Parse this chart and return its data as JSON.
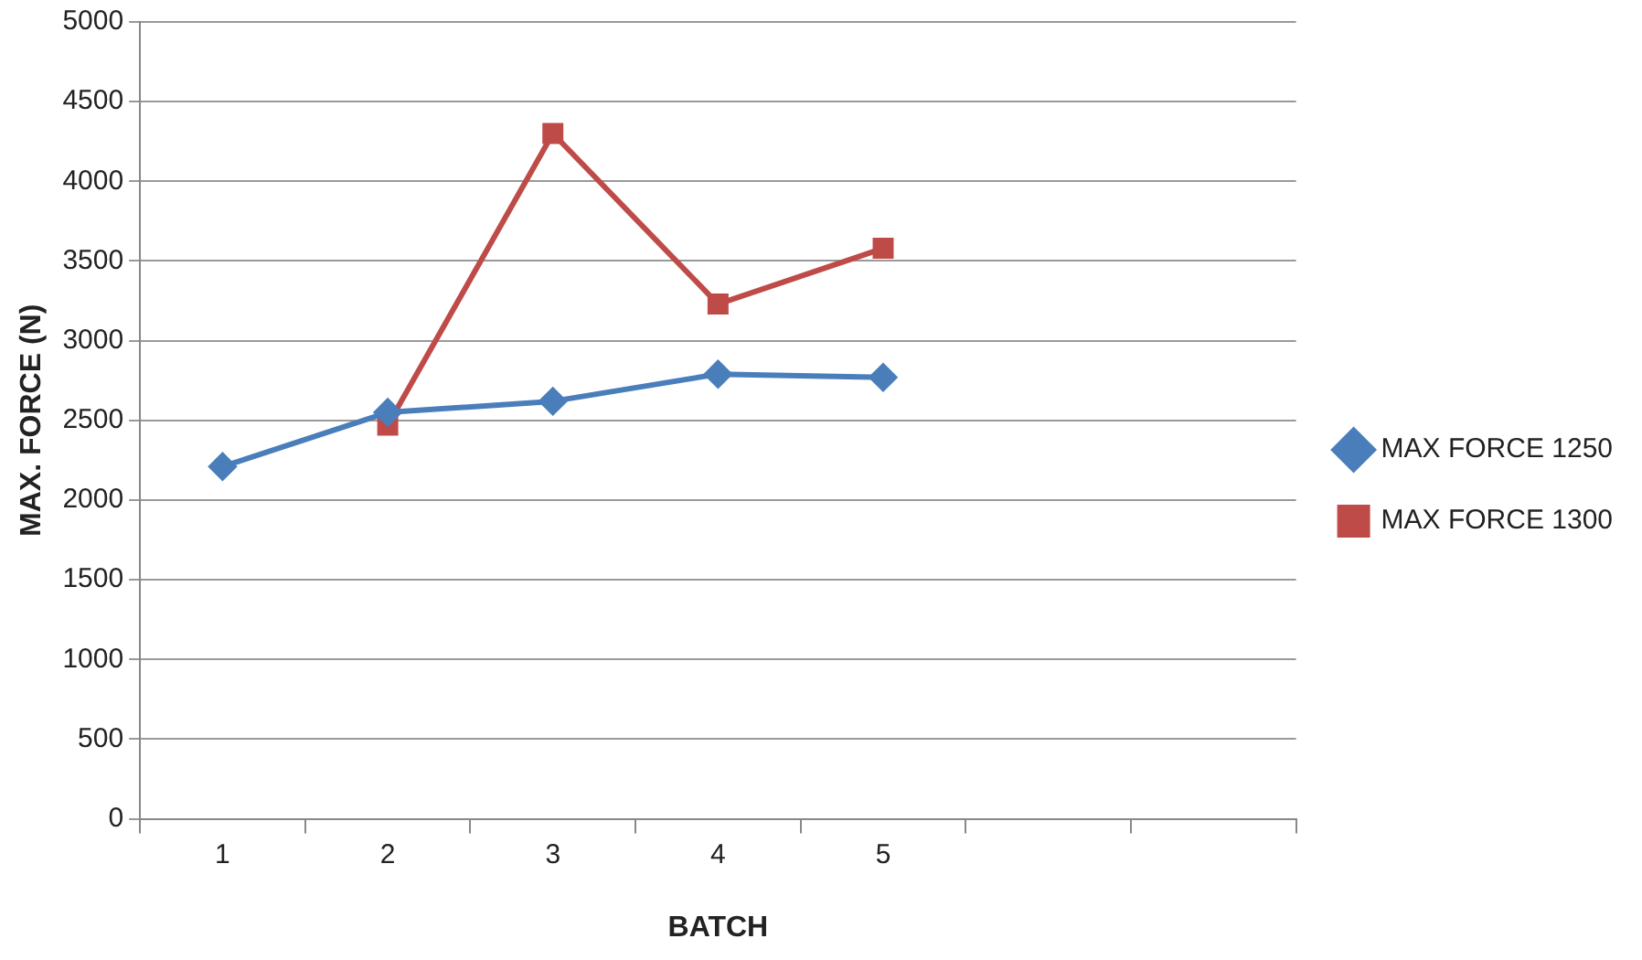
{
  "chart_data": {
    "type": "line",
    "xlabel": "BATCH",
    "ylabel": "MAX. FORCE (N)",
    "categories": [
      "1",
      "2",
      "3",
      "4",
      "5",
      null,
      null
    ],
    "series": [
      {
        "name": "MAX FORCE 1250",
        "color": "#4a7ebb",
        "marker": "diamond",
        "values": [
          2210,
          2550,
          2620,
          2790,
          2770,
          null,
          null
        ]
      },
      {
        "name": "MAX FORCE 1300",
        "color": "#be4b48",
        "marker": "square",
        "values": [
          null,
          2470,
          4300,
          3230,
          3580,
          null,
          null
        ]
      }
    ],
    "ylim": [
      0,
      5000
    ],
    "yticks": [
      0,
      500,
      1000,
      1500,
      2000,
      2500,
      3000,
      3500,
      4000,
      4500,
      5000
    ],
    "grid": "y",
    "legend": "right",
    "line_style": "solid"
  }
}
